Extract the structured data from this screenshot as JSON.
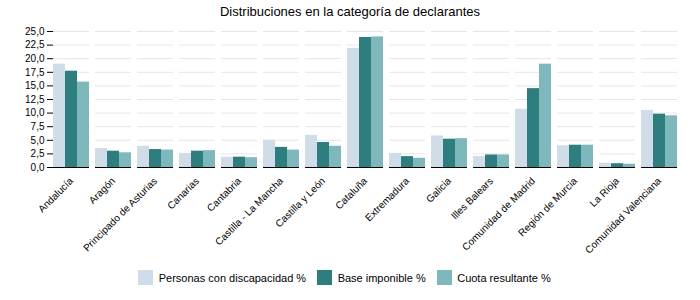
{
  "chart_data": {
    "type": "bar",
    "title": "Distribuciones en la categoría de declarantes",
    "categories": [
      "Andalucía",
      "Aragón",
      "Principado de Asturias",
      "Canarias",
      "Cantabria",
      "Castilla - La Mancha",
      "Castilla y León",
      "Cataluña",
      "Extremadura",
      "Galicia",
      "Illes Balears",
      "Comunidad de Madrid",
      "Región de Murcia",
      "La Rioja",
      "Comunidad Valenciana"
    ],
    "series": [
      {
        "name": "Personas con discapacidad %",
        "color": "#d0dce8",
        "values": [
          19.0,
          3.5,
          3.9,
          2.6,
          1.9,
          5.0,
          5.9,
          21.9,
          2.6,
          5.8,
          2.0,
          10.7,
          4.0,
          0.8,
          10.5
        ]
      },
      {
        "name": "Base imponible %",
        "color": "#2e7e80",
        "values": [
          17.7,
          3.0,
          3.3,
          3.0,
          1.9,
          3.7,
          4.6,
          23.9,
          2.0,
          5.2,
          2.3,
          14.5,
          4.1,
          0.7,
          9.8
        ]
      },
      {
        "name": "Cuota resultante %",
        "color": "#7fb8bc",
        "values": [
          15.7,
          2.7,
          3.2,
          3.1,
          1.8,
          3.2,
          3.9,
          24.0,
          1.7,
          5.3,
          2.3,
          19.0,
          4.1,
          0.6,
          9.5
        ]
      }
    ],
    "ylim": [
      0,
      25.0
    ],
    "yticks": [
      {
        "value": 0.0,
        "label": "0,0"
      },
      {
        "value": 2.5,
        "label": "2,5"
      },
      {
        "value": 5.0,
        "label": "5,0"
      },
      {
        "value": 7.5,
        "label": "7,5"
      },
      {
        "value": 10.0,
        "label": "10,0"
      },
      {
        "value": 12.5,
        "label": "12,5"
      },
      {
        "value": 15.0,
        "label": "15,0"
      },
      {
        "value": 17.5,
        "label": "17,5"
      },
      {
        "value": 20.0,
        "label": "20,0"
      },
      {
        "value": 22.5,
        "label": "22,5"
      },
      {
        "value": 25.0,
        "label": "25,0"
      }
    ],
    "grid": true,
    "legend": "bottom"
  }
}
